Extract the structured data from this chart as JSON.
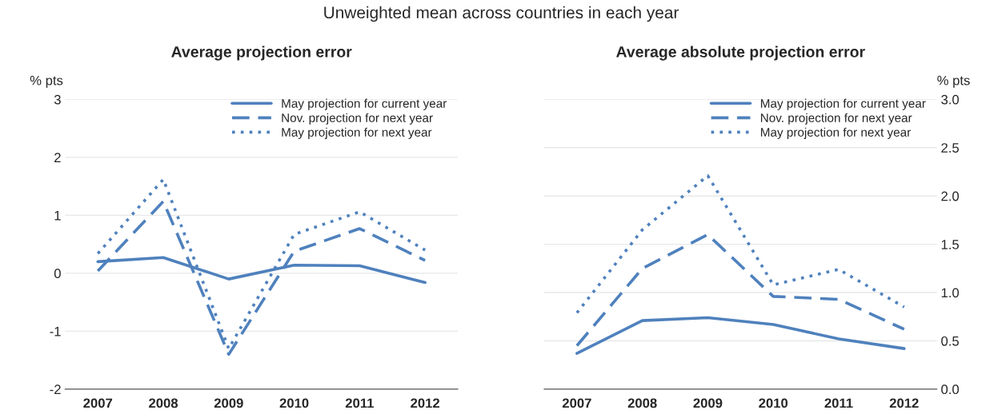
{
  "chart_data": [
    {
      "type": "line",
      "title": "Average projection error",
      "annotations": [
        "Unweighted mean across countries in each year"
      ],
      "ylabel": "% pts",
      "categories": [
        "2007",
        "2008",
        "2009",
        "2010",
        "2011",
        "2012"
      ],
      "series": [
        {
          "name": "May projection for current year",
          "color": "#4f81bd",
          "line_style": "solid",
          "values": [
            0.2,
            0.27,
            -0.1,
            0.14,
            0.13,
            -0.16
          ]
        },
        {
          "name": "Nov. projection for next year",
          "color": "#4f81bd",
          "line_style": "dashed",
          "values": [
            0.04,
            1.24,
            -1.4,
            0.38,
            0.77,
            0.22
          ]
        },
        {
          "name": "May projection for next year",
          "color": "#4f81bd",
          "line_style": "dotted",
          "values": [
            0.34,
            1.62,
            -1.3,
            0.67,
            1.06,
            0.4
          ]
        }
      ],
      "ylim": [
        -2,
        3
      ],
      "yticks": [
        -2,
        -1,
        0,
        1,
        2,
        3
      ],
      "grid": "y",
      "legend": "top right",
      "marker": "none"
    },
    {
      "type": "line",
      "title": "Average absolute projection error",
      "y2label": "% pts",
      "categories": [
        "2007",
        "2008",
        "2009",
        "2010",
        "2011",
        "2012"
      ],
      "series": [
        {
          "name": "May projection for current year",
          "color": "#4f81bd",
          "line_style": "solid",
          "axis": "y2",
          "values": [
            0.37,
            0.71,
            0.74,
            0.67,
            0.52,
            0.42
          ]
        },
        {
          "name": "Nov. projection for next year",
          "color": "#4f81bd",
          "line_style": "dashed",
          "axis": "y2",
          "values": [
            0.45,
            1.25,
            1.6,
            0.96,
            0.93,
            0.62
          ]
        },
        {
          "name": "May projection for next year",
          "color": "#4f81bd",
          "line_style": "dotted",
          "axis": "y2",
          "values": [
            0.79,
            1.65,
            2.21,
            1.08,
            1.24,
            0.85
          ]
        }
      ],
      "y2lim": [
        0,
        3
      ],
      "y2ticks": [
        {
          "value": 0,
          "label": "0.0"
        },
        {
          "value": 0.5,
          "label": "0.5"
        },
        {
          "value": 1,
          "label": "1.0"
        },
        {
          "value": 1.5,
          "label": "1.5"
        },
        {
          "value": 2,
          "label": "2.0"
        },
        {
          "value": 2.5,
          "label": "2.5"
        },
        {
          "value": 3,
          "label": "3.0"
        }
      ],
      "grid": "y",
      "legend": "top right",
      "marker": "none"
    }
  ]
}
